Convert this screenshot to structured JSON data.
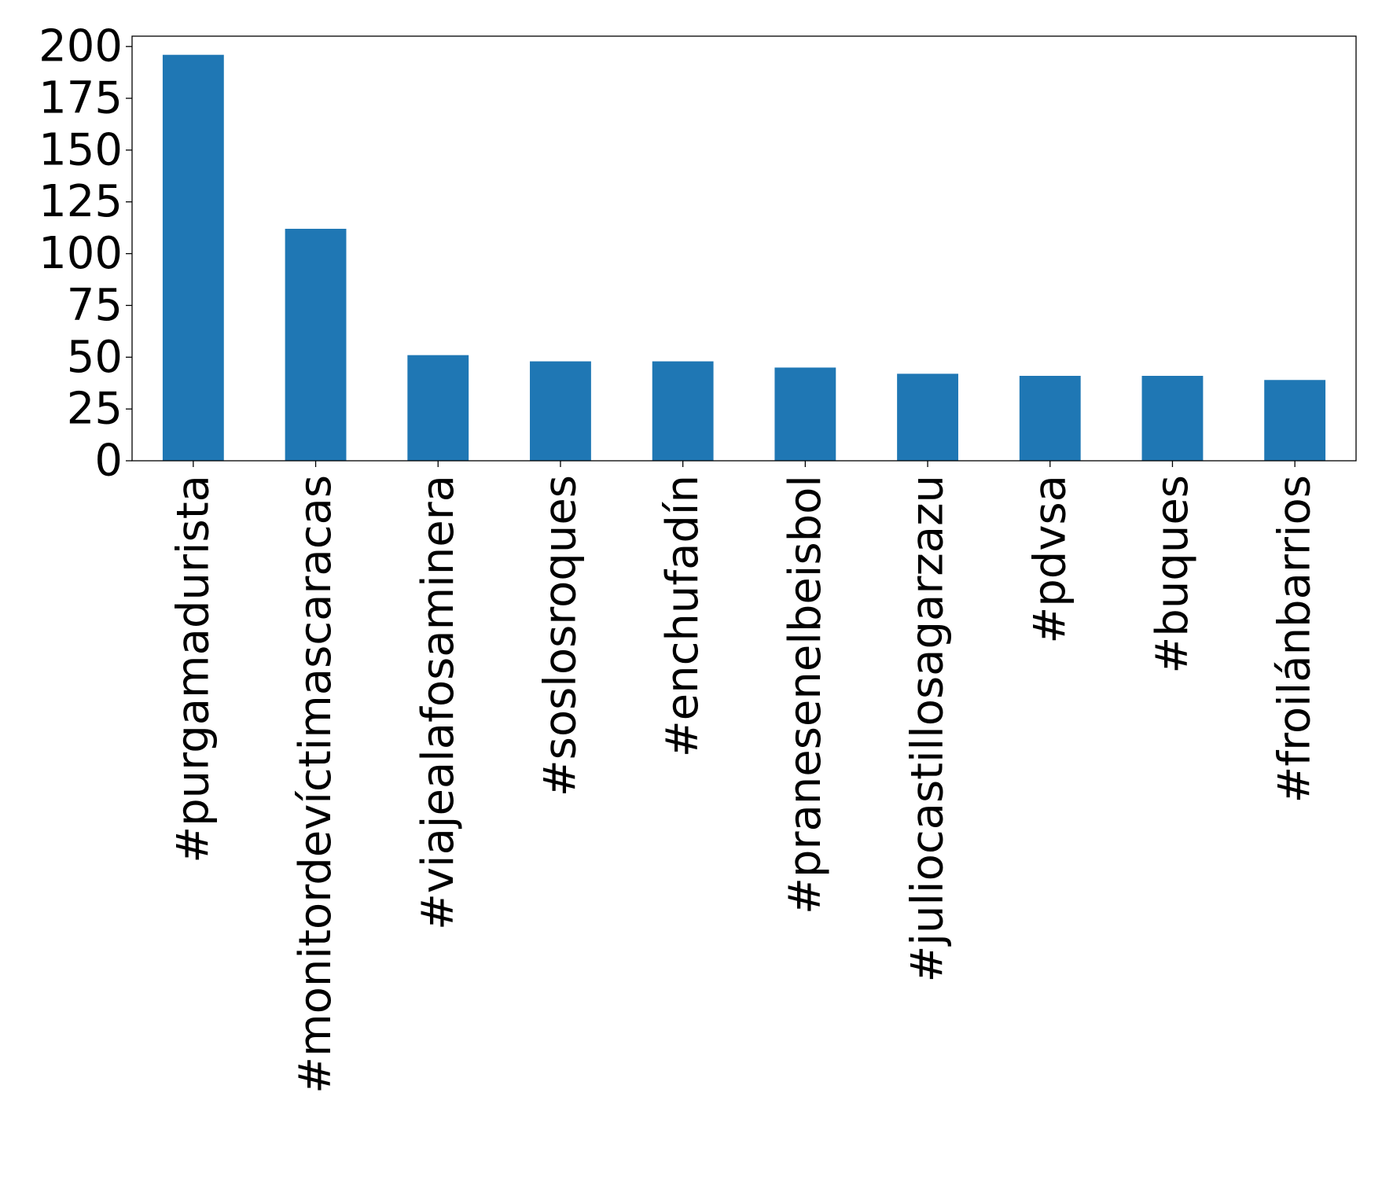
{
  "colors": {
    "bar": "#1f77b4",
    "axis": "#000000",
    "background": "#ffffff"
  },
  "chart_data": {
    "type": "bar",
    "title": "",
    "xlabel": "",
    "ylabel": "",
    "categories": [
      "#purgamadurista",
      "#monitordevíctimascaracas",
      "#viajealafosaminera",
      "#soslosroques",
      "#enchufadín",
      "#pranesenelbeisbol",
      "#juliocastillosagarzazu",
      "#pdvsa",
      "#buques",
      "#froilánbarrios"
    ],
    "values": [
      196,
      112,
      51,
      48,
      48,
      45,
      42,
      41,
      41,
      39
    ],
    "ylim": [
      0,
      205
    ],
    "yticks": [
      0,
      25,
      50,
      75,
      100,
      125,
      150,
      175,
      200
    ],
    "grid": false,
    "legend": "none"
  }
}
